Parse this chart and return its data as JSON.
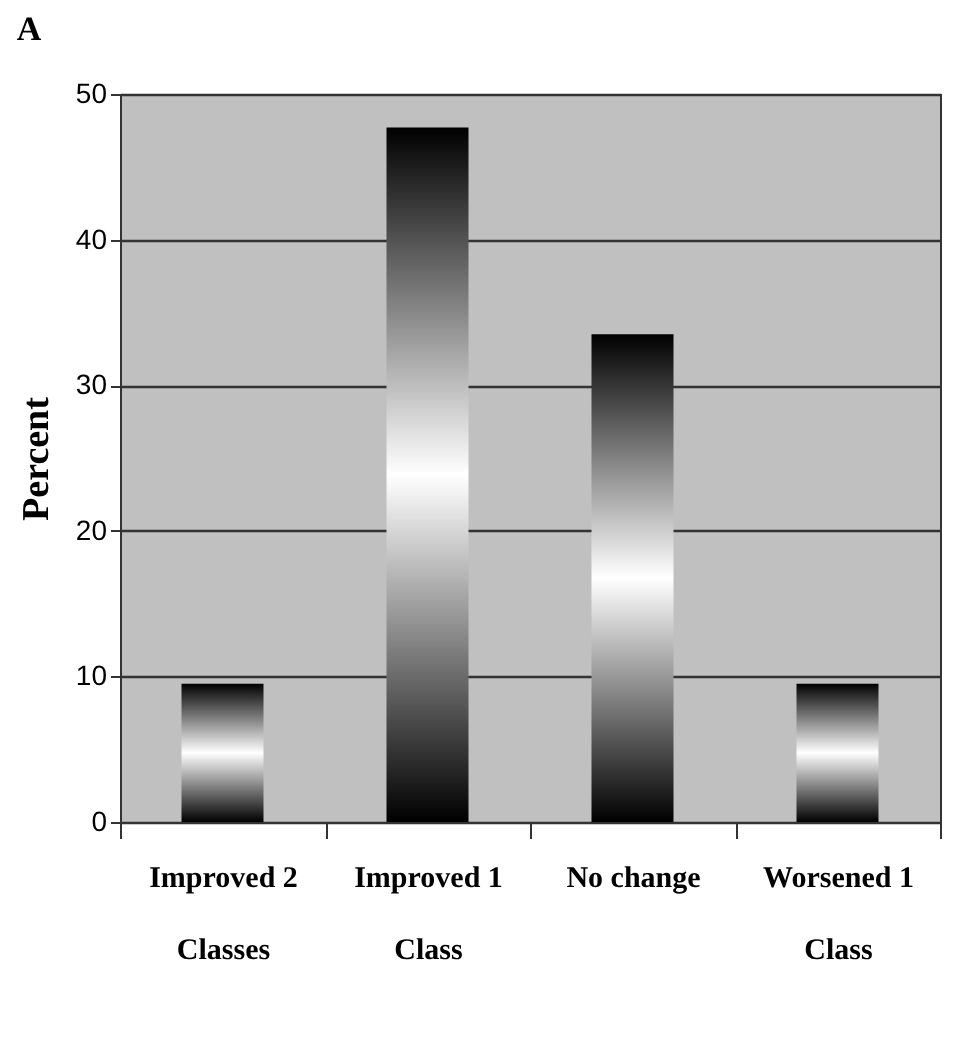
{
  "chart_data": {
    "type": "bar",
    "title": "A",
    "ylabel": "Percent",
    "categories": [
      "Improved 2 Classes",
      "Improved 1 Class",
      "No change",
      "Worsened 1 Class"
    ],
    "values": [
      9.5,
      47.7,
      33.5,
      9.5
    ],
    "color": "#ffffff",
    "ylim": [
      0,
      50
    ],
    "yticks": [
      0,
      10,
      20,
      30,
      40,
      50
    ],
    "grid": "y"
  }
}
